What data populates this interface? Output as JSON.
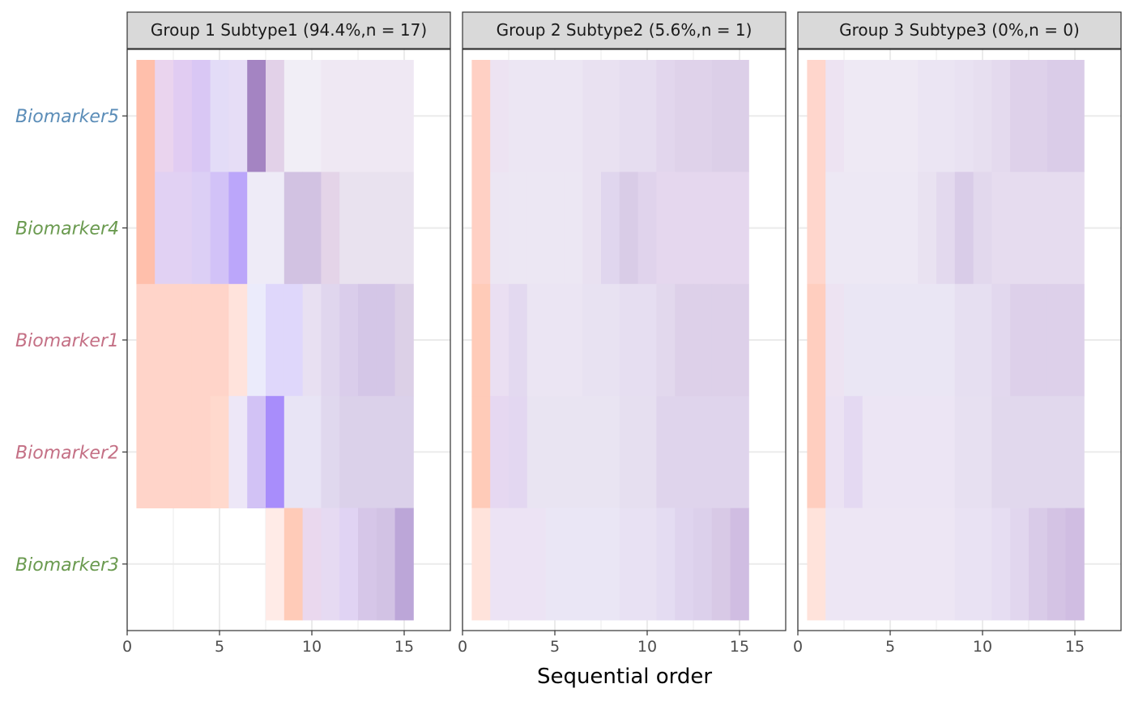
{
  "chart_data": {
    "type": "heatmap",
    "xlabel": "Sequential order",
    "xlim": [
      0,
      17.5
    ],
    "xticks": [
      0,
      5,
      10,
      15
    ],
    "grid": true,
    "rows": [
      "Biomarker5",
      "Biomarker4",
      "Biomarker1",
      "Biomarker2",
      "Biomarker3"
    ],
    "row_colors": {
      "Biomarker5": "#5b8db8",
      "Biomarker4": "#6a9a4f",
      "Biomarker1": "#c47085",
      "Biomarker2": "#c47085",
      "Biomarker3": "#6a9a4f"
    },
    "panels": [
      {
        "title": "Group 1 Subtype1 (94.4%,n = 17)",
        "cells": {
          "Biomarker5": [
            "#ffbfab",
            "#ead4ee",
            "#e1ccf2",
            "#d9c7f4",
            "#e3dcf7",
            "#e6ddf6",
            "#a484c2",
            "#e2d1e8",
            "#f1eef6",
            "#f1eef6",
            "#efe8f3",
            "#efe8f3",
            "#efe8f3",
            "#efe8f3",
            "#efe8f3"
          ],
          "Biomarker4": [
            "#ffbfab",
            "#e1d1f3",
            "#e1d1f3",
            "#dccff5",
            "#d2c2f7",
            "#bba6fa",
            "#eeebf7",
            "#eeebf7",
            "#d2c2e2",
            "#d2c2e2",
            "#e4d4e8",
            "#e9e2ef",
            "#e9e2ef",
            "#e9e2ef",
            "#e9e2ef"
          ],
          "Biomarker1": [
            "#ffd4c9",
            "#ffd4c9",
            "#ffd4c9",
            "#ffd4c9",
            "#ffd4c9",
            "#ffe3dc",
            "#ebebfb",
            "#dfd7fb",
            "#dfd7fb",
            "#e8e0f2",
            "#e0d6ee",
            "#dacdeb",
            "#d4c6e7",
            "#d4c6e7",
            "#dcd0e7"
          ],
          "Biomarker2": [
            "#ffd4c9",
            "#ffd4c9",
            "#ffd4c9",
            "#ffd4c9",
            "#ffd9cd",
            "#ede7f7",
            "#d2c2f5",
            "#a88dfb",
            "#e8e4f5",
            "#e8e4f5",
            "#e0d8ee",
            "#dbd1ea",
            "#dbd1ea",
            "#dbd1ea",
            "#dbd1ea"
          ],
          "Biomarker3": [
            null,
            null,
            null,
            null,
            null,
            null,
            null,
            "#ffebe7",
            "#ffcbb8",
            "#ead8ee",
            "#e6daf2",
            "#e0d3f3",
            "#d6c6e8",
            "#d2c2e4",
            "#bca6d8"
          ]
        }
      },
      {
        "title": "Group 2 Subtype2 (5.6%,n = 1)",
        "cells": {
          "Biomarker5": [
            "#ffd0c4",
            "#ede3f2",
            "#ece6f3",
            "#ece6f3",
            "#ece6f3",
            "#ece6f3",
            "#e9e1f1",
            "#e9e1f1",
            "#e6ddf0",
            "#e6ddf0",
            "#e2d6ed",
            "#dfd2ea",
            "#dfd2ea",
            "#dccfe8",
            "#dccfe8"
          ],
          "Biomarker4": [
            "#ffd0c4",
            "#ece6f3",
            "#ece7f3",
            "#ece7f3",
            "#ece7f3",
            "#ece7f3",
            "#e9e1f1",
            "#e0d6ee",
            "#d9cce7",
            "#e0d3ec",
            "#e5d7ee",
            "#e5d7ee",
            "#e5d7ee",
            "#e5d7ee",
            "#e5d7ee"
          ],
          "Biomarker1": [
            "#ffcbb8",
            "#eadff2",
            "#e3d9f0",
            "#ebe5f3",
            "#ebe5f3",
            "#ebe5f3",
            "#e8e2f2",
            "#e8e2f2",
            "#e6def1",
            "#e6def1",
            "#e2d8ed",
            "#ddd0e9",
            "#ddd0e9",
            "#ddd0e9",
            "#ddd0e9"
          ],
          "Biomarker2": [
            "#ffcbb8",
            "#e6d8f1",
            "#e3d7f1",
            "#e9e4f2",
            "#e9e4f2",
            "#e9e4f2",
            "#e9e4f2",
            "#e9e4f2",
            "#e6dff0",
            "#e6dff0",
            "#dfd4ec",
            "#dfd4ec",
            "#dfd4ec",
            "#dfd4ec",
            "#dfd4ec"
          ],
          "Biomarker3": [
            "#ffe3db",
            "#ece3f4",
            "#ece3f4",
            "#ece3f4",
            "#eae6f5",
            "#eae6f5",
            "#eae6f5",
            "#eae6f5",
            "#e8e1f3",
            "#e8e1f3",
            "#e4dcf2",
            "#dfd4ee",
            "#dcd0eb",
            "#d8c9e6",
            "#d0bde2"
          ]
        }
      },
      {
        "title": "Group 3 Subtype3 (0%,n = 0)",
        "cells": {
          "Biomarker5": [
            "#ffd6cc",
            "#ede3f2",
            "#eee9f4",
            "#eee9f4",
            "#eee9f4",
            "#eee9f4",
            "#ebe5f3",
            "#ebe5f3",
            "#e9e2f2",
            "#e7dff0",
            "#e4daee",
            "#ded1ea",
            "#ded1ea",
            "#dacce8",
            "#dacce8"
          ],
          "Biomarker4": [
            "#ffd6cc",
            "#ede8f4",
            "#ede8f4",
            "#ede8f4",
            "#ede8f4",
            "#ede8f4",
            "#e9e2f1",
            "#e3d9ee",
            "#d9cce8",
            "#e2d8ed",
            "#e6dcef",
            "#e6dcef",
            "#e6dcef",
            "#e6dcef",
            "#e6dcef"
          ],
          "Biomarker1": [
            "#ffcebf",
            "#ede3f2",
            "#eae6f4",
            "#eae6f4",
            "#eae6f4",
            "#eae6f4",
            "#eae6f4",
            "#eae6f4",
            "#e6dff1",
            "#e6dff1",
            "#e2d8ee",
            "#ddd0ea",
            "#ddd0ea",
            "#ddd0ea",
            "#ddd0ea"
          ],
          "Biomarker2": [
            "#ffcebf",
            "#ebe2f3",
            "#e4d9f2",
            "#ece5f4",
            "#ece5f4",
            "#ece5f4",
            "#ece5f4",
            "#ece5f4",
            "#e7e0f1",
            "#e7e0f1",
            "#e1d8ed",
            "#e1d8ed",
            "#e1d8ed",
            "#e1d8ed",
            "#e1d8ed"
          ],
          "Biomarker3": [
            "#ffe3db",
            "#ede6f4",
            "#ede6f4",
            "#ede6f4",
            "#ede6f4",
            "#ede6f4",
            "#ede6f4",
            "#ede6f4",
            "#e9e2f3",
            "#e9e2f3",
            "#e6ddf2",
            "#e1d6ee",
            "#d9cbe8",
            "#d4c3e4",
            "#d0bde2"
          ]
        }
      }
    ]
  }
}
